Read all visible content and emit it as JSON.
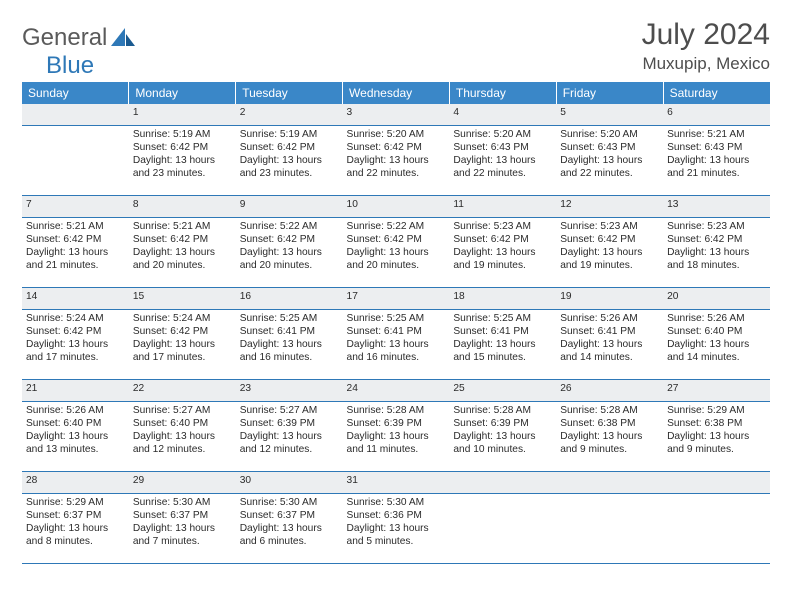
{
  "logo": {
    "part1": "General",
    "part2": "Blue"
  },
  "header": {
    "title": "July 2024",
    "location": "Muxupip, Mexico"
  },
  "colors": {
    "header_bg": "#3a87c8",
    "header_text": "#ffffff",
    "daynum_bg": "#eceef0",
    "border": "#2e78b7",
    "page_bg": "#ffffff",
    "text": "#2b2b2b",
    "title_text": "#4d4d4d"
  },
  "weekdays": [
    "Sunday",
    "Monday",
    "Tuesday",
    "Wednesday",
    "Thursday",
    "Friday",
    "Saturday"
  ],
  "calendar": {
    "first_weekday_index": 1,
    "days_in_month": 31,
    "days": [
      {
        "n": 1,
        "sunrise": "5:19 AM",
        "sunset": "6:42 PM",
        "daylight": "13 hours and 23 minutes."
      },
      {
        "n": 2,
        "sunrise": "5:19 AM",
        "sunset": "6:42 PM",
        "daylight": "13 hours and 23 minutes."
      },
      {
        "n": 3,
        "sunrise": "5:20 AM",
        "sunset": "6:42 PM",
        "daylight": "13 hours and 22 minutes."
      },
      {
        "n": 4,
        "sunrise": "5:20 AM",
        "sunset": "6:43 PM",
        "daylight": "13 hours and 22 minutes."
      },
      {
        "n": 5,
        "sunrise": "5:20 AM",
        "sunset": "6:43 PM",
        "daylight": "13 hours and 22 minutes."
      },
      {
        "n": 6,
        "sunrise": "5:21 AM",
        "sunset": "6:43 PM",
        "daylight": "13 hours and 21 minutes."
      },
      {
        "n": 7,
        "sunrise": "5:21 AM",
        "sunset": "6:42 PM",
        "daylight": "13 hours and 21 minutes."
      },
      {
        "n": 8,
        "sunrise": "5:21 AM",
        "sunset": "6:42 PM",
        "daylight": "13 hours and 20 minutes."
      },
      {
        "n": 9,
        "sunrise": "5:22 AM",
        "sunset": "6:42 PM",
        "daylight": "13 hours and 20 minutes."
      },
      {
        "n": 10,
        "sunrise": "5:22 AM",
        "sunset": "6:42 PM",
        "daylight": "13 hours and 20 minutes."
      },
      {
        "n": 11,
        "sunrise": "5:23 AM",
        "sunset": "6:42 PM",
        "daylight": "13 hours and 19 minutes."
      },
      {
        "n": 12,
        "sunrise": "5:23 AM",
        "sunset": "6:42 PM",
        "daylight": "13 hours and 19 minutes."
      },
      {
        "n": 13,
        "sunrise": "5:23 AM",
        "sunset": "6:42 PM",
        "daylight": "13 hours and 18 minutes."
      },
      {
        "n": 14,
        "sunrise": "5:24 AM",
        "sunset": "6:42 PM",
        "daylight": "13 hours and 17 minutes."
      },
      {
        "n": 15,
        "sunrise": "5:24 AM",
        "sunset": "6:42 PM",
        "daylight": "13 hours and 17 minutes."
      },
      {
        "n": 16,
        "sunrise": "5:25 AM",
        "sunset": "6:41 PM",
        "daylight": "13 hours and 16 minutes."
      },
      {
        "n": 17,
        "sunrise": "5:25 AM",
        "sunset": "6:41 PM",
        "daylight": "13 hours and 16 minutes."
      },
      {
        "n": 18,
        "sunrise": "5:25 AM",
        "sunset": "6:41 PM",
        "daylight": "13 hours and 15 minutes."
      },
      {
        "n": 19,
        "sunrise": "5:26 AM",
        "sunset": "6:41 PM",
        "daylight": "13 hours and 14 minutes."
      },
      {
        "n": 20,
        "sunrise": "5:26 AM",
        "sunset": "6:40 PM",
        "daylight": "13 hours and 14 minutes."
      },
      {
        "n": 21,
        "sunrise": "5:26 AM",
        "sunset": "6:40 PM",
        "daylight": "13 hours and 13 minutes."
      },
      {
        "n": 22,
        "sunrise": "5:27 AM",
        "sunset": "6:40 PM",
        "daylight": "13 hours and 12 minutes."
      },
      {
        "n": 23,
        "sunrise": "5:27 AM",
        "sunset": "6:39 PM",
        "daylight": "13 hours and 12 minutes."
      },
      {
        "n": 24,
        "sunrise": "5:28 AM",
        "sunset": "6:39 PM",
        "daylight": "13 hours and 11 minutes."
      },
      {
        "n": 25,
        "sunrise": "5:28 AM",
        "sunset": "6:39 PM",
        "daylight": "13 hours and 10 minutes."
      },
      {
        "n": 26,
        "sunrise": "5:28 AM",
        "sunset": "6:38 PM",
        "daylight": "13 hours and 9 minutes."
      },
      {
        "n": 27,
        "sunrise": "5:29 AM",
        "sunset": "6:38 PM",
        "daylight": "13 hours and 9 minutes."
      },
      {
        "n": 28,
        "sunrise": "5:29 AM",
        "sunset": "6:37 PM",
        "daylight": "13 hours and 8 minutes."
      },
      {
        "n": 29,
        "sunrise": "5:30 AM",
        "sunset": "6:37 PM",
        "daylight": "13 hours and 7 minutes."
      },
      {
        "n": 30,
        "sunrise": "5:30 AM",
        "sunset": "6:37 PM",
        "daylight": "13 hours and 6 minutes."
      },
      {
        "n": 31,
        "sunrise": "5:30 AM",
        "sunset": "6:36 PM",
        "daylight": "13 hours and 5 minutes."
      }
    ]
  },
  "labels": {
    "sunrise": "Sunrise:",
    "sunset": "Sunset:",
    "daylight": "Daylight:"
  }
}
